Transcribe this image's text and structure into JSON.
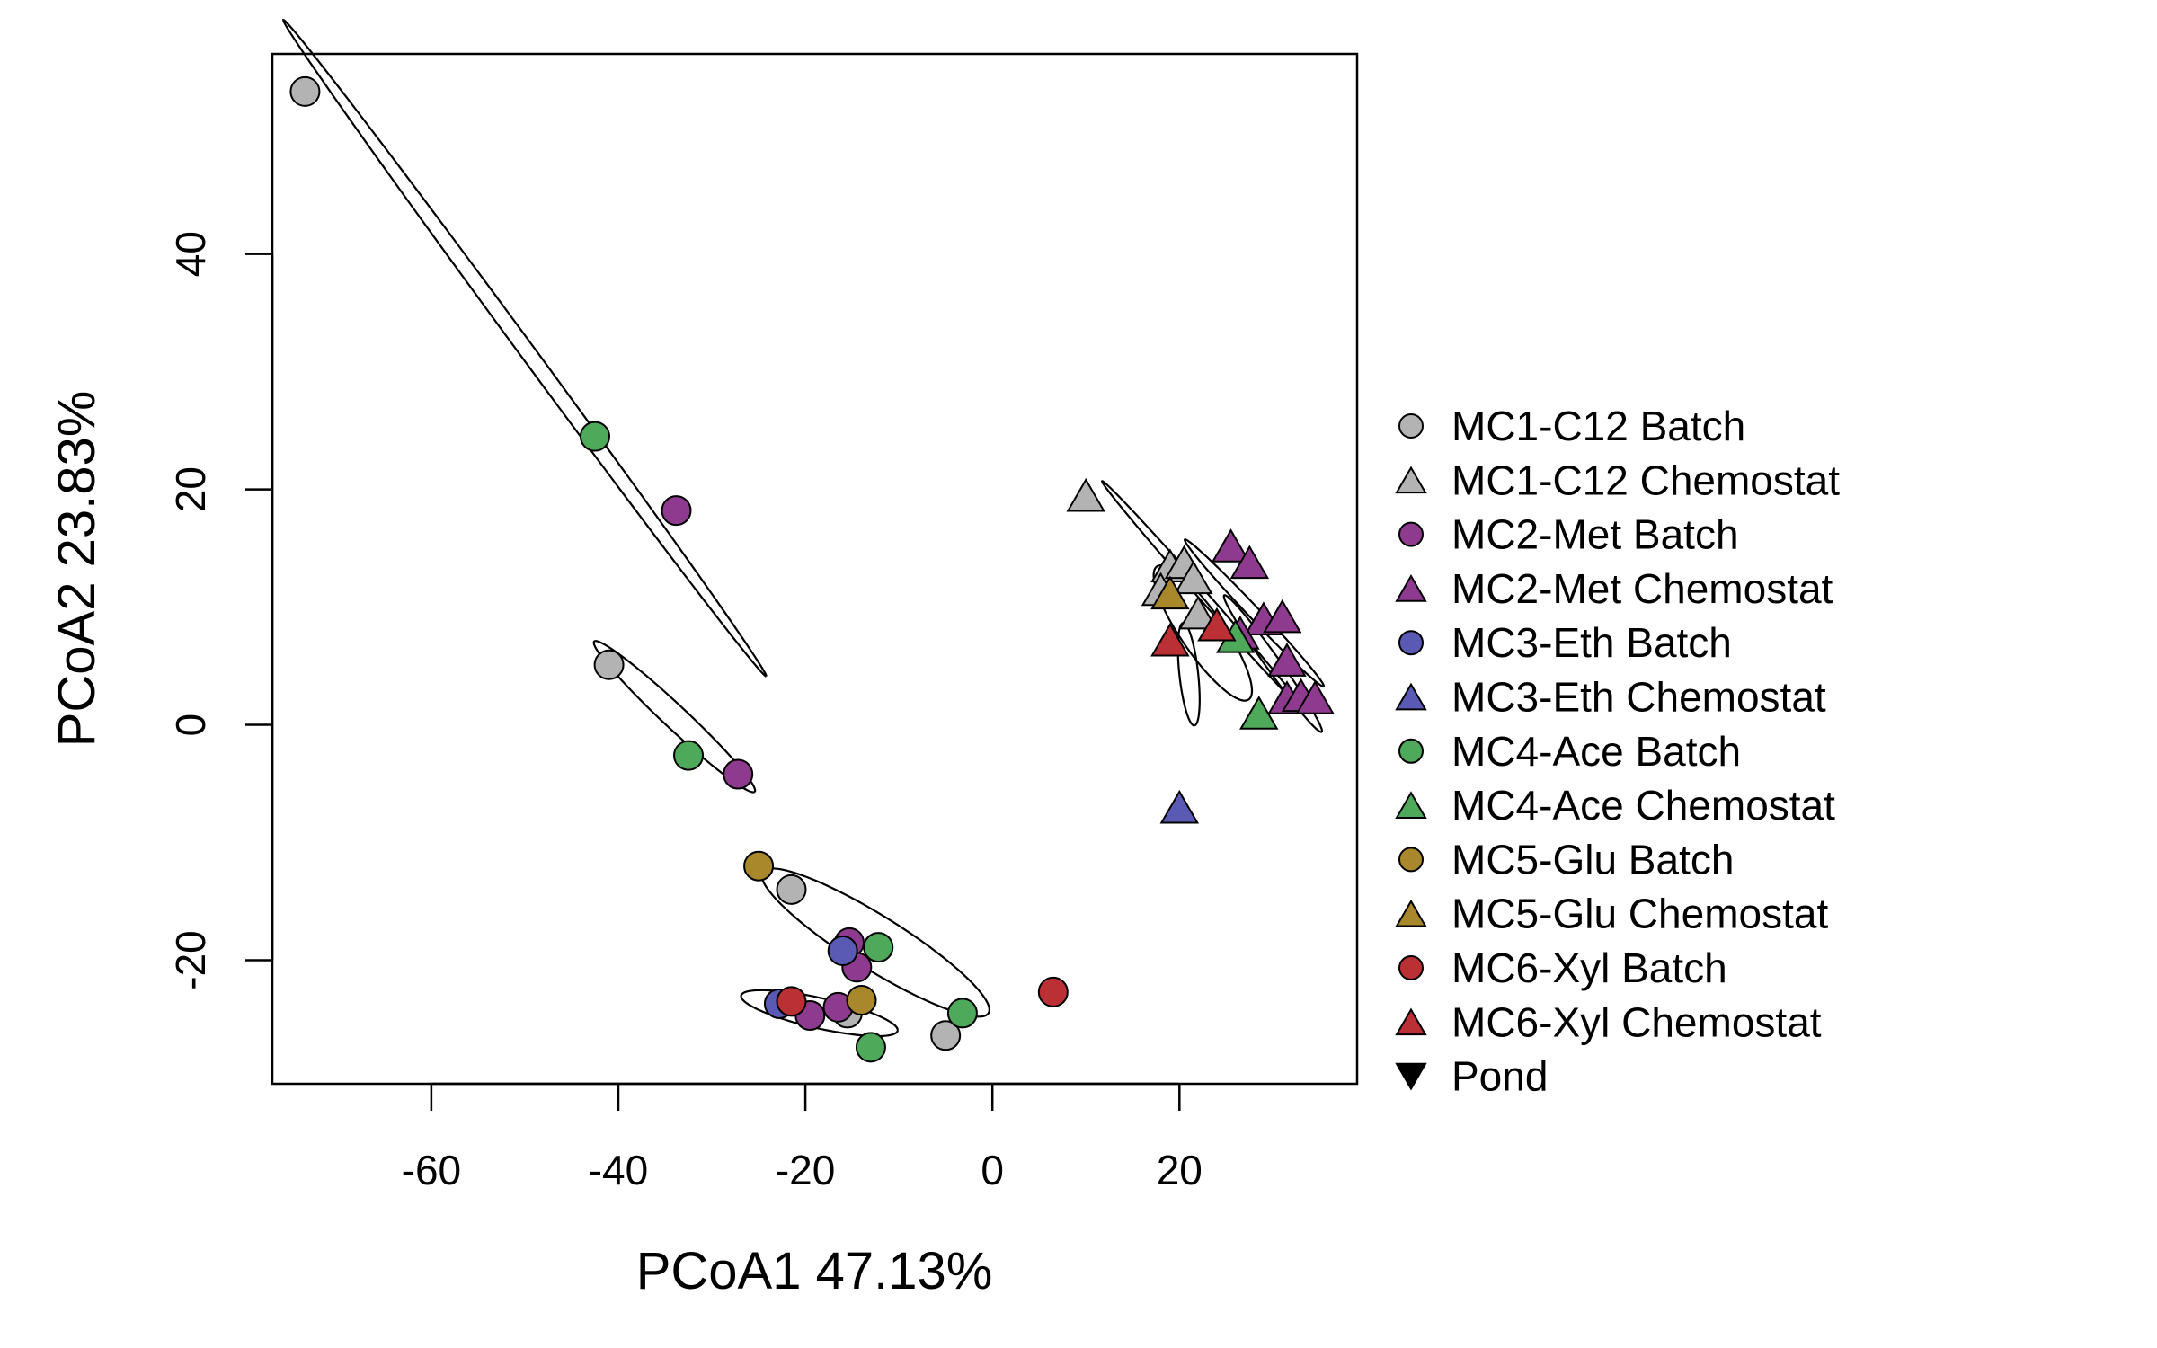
{
  "chart_data": {
    "type": "scatter",
    "xlabel": "PCoA1 47.13%",
    "ylabel": "PCoA2 23.83%",
    "xlim": [
      -77,
      39
    ],
    "ylim": [
      -30.5,
      57
    ],
    "x_ticks": [
      -60,
      -40,
      -20,
      0,
      20
    ],
    "y_ticks": [
      -20,
      0,
      20,
      40
    ],
    "x_tick_labels": [
      "-60",
      "-40",
      "-20",
      "0",
      "20"
    ],
    "y_tick_labels": [
      "-20",
      "0",
      "20",
      "40"
    ],
    "grid": false,
    "legend_position": "right",
    "colors": {
      "MC1": "#b3b3b3",
      "MC2": "#8e3a8e",
      "MC3": "#5a5ab5",
      "MC4": "#4fa95a",
      "MC5": "#a8882a",
      "MC6": "#bb3035",
      "Pond": "#000000"
    },
    "legend": [
      {
        "label": "MC1-C12 Batch",
        "shape": "circle",
        "color": "#b3b3b3"
      },
      {
        "label": "MC1-C12 Chemostat",
        "shape": "triangle",
        "color": "#b3b3b3"
      },
      {
        "label": "MC2-Met Batch",
        "shape": "circle",
        "color": "#8e3a8e"
      },
      {
        "label": "MC2-Met Chemostat",
        "shape": "triangle",
        "color": "#8e3a8e"
      },
      {
        "label": "MC3-Eth Batch",
        "shape": "circle",
        "color": "#5a5ab5"
      },
      {
        "label": "MC3-Eth Chemostat",
        "shape": "triangle",
        "color": "#5a5ab5"
      },
      {
        "label": "MC4-Ace Batch",
        "shape": "circle",
        "color": "#4fa95a"
      },
      {
        "label": "MC4-Ace Chemostat",
        "shape": "triangle",
        "color": "#4fa95a"
      },
      {
        "label": "MC5-Glu Batch",
        "shape": "circle",
        "color": "#a8882a"
      },
      {
        "label": "MC5-Glu Chemostat",
        "shape": "triangle",
        "color": "#a8882a"
      },
      {
        "label": "MC6-Xyl Batch",
        "shape": "circle",
        "color": "#bb3035"
      },
      {
        "label": "MC6-Xyl Chemostat",
        "shape": "triangle",
        "color": "#bb3035"
      },
      {
        "label": "Pond",
        "shape": "triangle-down",
        "color": "#000000"
      }
    ],
    "series": [
      {
        "name": "MC1-C12 Batch",
        "shape": "circle",
        "color": "#b3b3b3",
        "points": [
          [
            -73.5,
            53.8
          ],
          [
            -41,
            5.1
          ],
          [
            -21.5,
            -14.0
          ],
          [
            -5,
            -26.4
          ],
          [
            -15.5,
            -24.5
          ]
        ]
      },
      {
        "name": "MC1-C12 Chemostat",
        "shape": "triangle",
        "color": "#b3b3b3",
        "points": [
          [
            10,
            19.5
          ],
          [
            19,
            13.5
          ],
          [
            20.5,
            13.8
          ],
          [
            21.5,
            12.5
          ],
          [
            18,
            11.5
          ],
          [
            22,
            9.5
          ]
        ]
      },
      {
        "name": "MC2-Met Batch",
        "shape": "circle",
        "color": "#8e3a8e",
        "points": [
          [
            -33.8,
            18.2
          ],
          [
            -27.2,
            -4.2
          ],
          [
            -15.3,
            -18.5
          ],
          [
            -14.5,
            -20.6
          ],
          [
            -16.5,
            -24
          ],
          [
            -19.5,
            -24.7
          ]
        ]
      },
      {
        "name": "MC2-Met Chemostat",
        "shape": "triangle",
        "color": "#8e3a8e",
        "points": [
          [
            25.5,
            15.2
          ],
          [
            27.5,
            13.8
          ],
          [
            29,
            9
          ],
          [
            31,
            9.2
          ],
          [
            31.5,
            5.5
          ],
          [
            31.5,
            2.3
          ],
          [
            33,
            2.5
          ],
          [
            34.5,
            2.3
          ],
          [
            26.5,
            7.8
          ]
        ]
      },
      {
        "name": "MC3-Eth Batch",
        "shape": "circle",
        "color": "#5a5ab5",
        "points": [
          [
            -22.8,
            -23.7
          ],
          [
            -16,
            -19.2
          ]
        ]
      },
      {
        "name": "MC3-Eth Chemostat",
        "shape": "triangle",
        "color": "#5a5ab5",
        "points": [
          [
            20,
            -7
          ]
        ]
      },
      {
        "name": "MC4-Ace Batch",
        "shape": "circle",
        "color": "#4fa95a",
        "points": [
          [
            -42.5,
            24.5
          ],
          [
            -32.5,
            -2.6
          ],
          [
            -12.2,
            -18.9
          ],
          [
            -3.2,
            -24.5
          ],
          [
            -13,
            -27.4
          ]
        ]
      },
      {
        "name": "MC4-Ace Chemostat",
        "shape": "triangle",
        "color": "#4fa95a",
        "points": [
          [
            28.5,
            1
          ],
          [
            26,
            7.5
          ]
        ]
      },
      {
        "name": "MC5-Glu Batch",
        "shape": "circle",
        "color": "#a8882a",
        "points": [
          [
            -25,
            -12
          ],
          [
            -14,
            -23.4
          ]
        ]
      },
      {
        "name": "MC5-Glu Chemostat",
        "shape": "triangle",
        "color": "#a8882a",
        "points": [
          [
            19,
            11.2
          ]
        ]
      },
      {
        "name": "MC6-Xyl Batch",
        "shape": "circle",
        "color": "#bb3035",
        "points": [
          [
            6.5,
            -22.7
          ],
          [
            -21.5,
            -23.5
          ]
        ]
      },
      {
        "name": "MC6-Xyl Chemostat",
        "shape": "triangle",
        "color": "#bb3035",
        "points": [
          [
            19,
            7.2
          ],
          [
            24,
            8.5
          ]
        ]
      }
    ],
    "ellipses": [
      {
        "cx": -50,
        "cy": 32,
        "rx": 38,
        "ry": 0.75,
        "angle_deg": -47.2
      },
      {
        "cx": -34,
        "cy": 0.7,
        "rx": 10.7,
        "ry": 1.1,
        "angle_deg": -36.5
      },
      {
        "cx": -12.5,
        "cy": -18.5,
        "rx": 13.5,
        "ry": 2.4,
        "angle_deg": -26
      },
      {
        "cx": -18.5,
        "cy": -24.5,
        "rx": 8.5,
        "ry": 1.3,
        "angle_deg": -10
      },
      {
        "cx": 22.5,
        "cy": 11,
        "rx": 14.5,
        "ry": 0.45,
        "angle_deg": -42
      },
      {
        "cx": 28,
        "cy": 9.5,
        "rx": 9.7,
        "ry": 0.55,
        "angle_deg": -40
      },
      {
        "cx": 30,
        "cy": 5.2,
        "rx": 7.8,
        "ry": 0.7,
        "angle_deg": -48
      },
      {
        "cx": 22.5,
        "cy": 7.8,
        "rx": 7.5,
        "ry": 2.1,
        "angle_deg": -48
      },
      {
        "cx": 21,
        "cy": 4.3,
        "rx": 4.4,
        "ry": 1.0,
        "angle_deg": -82
      }
    ]
  }
}
